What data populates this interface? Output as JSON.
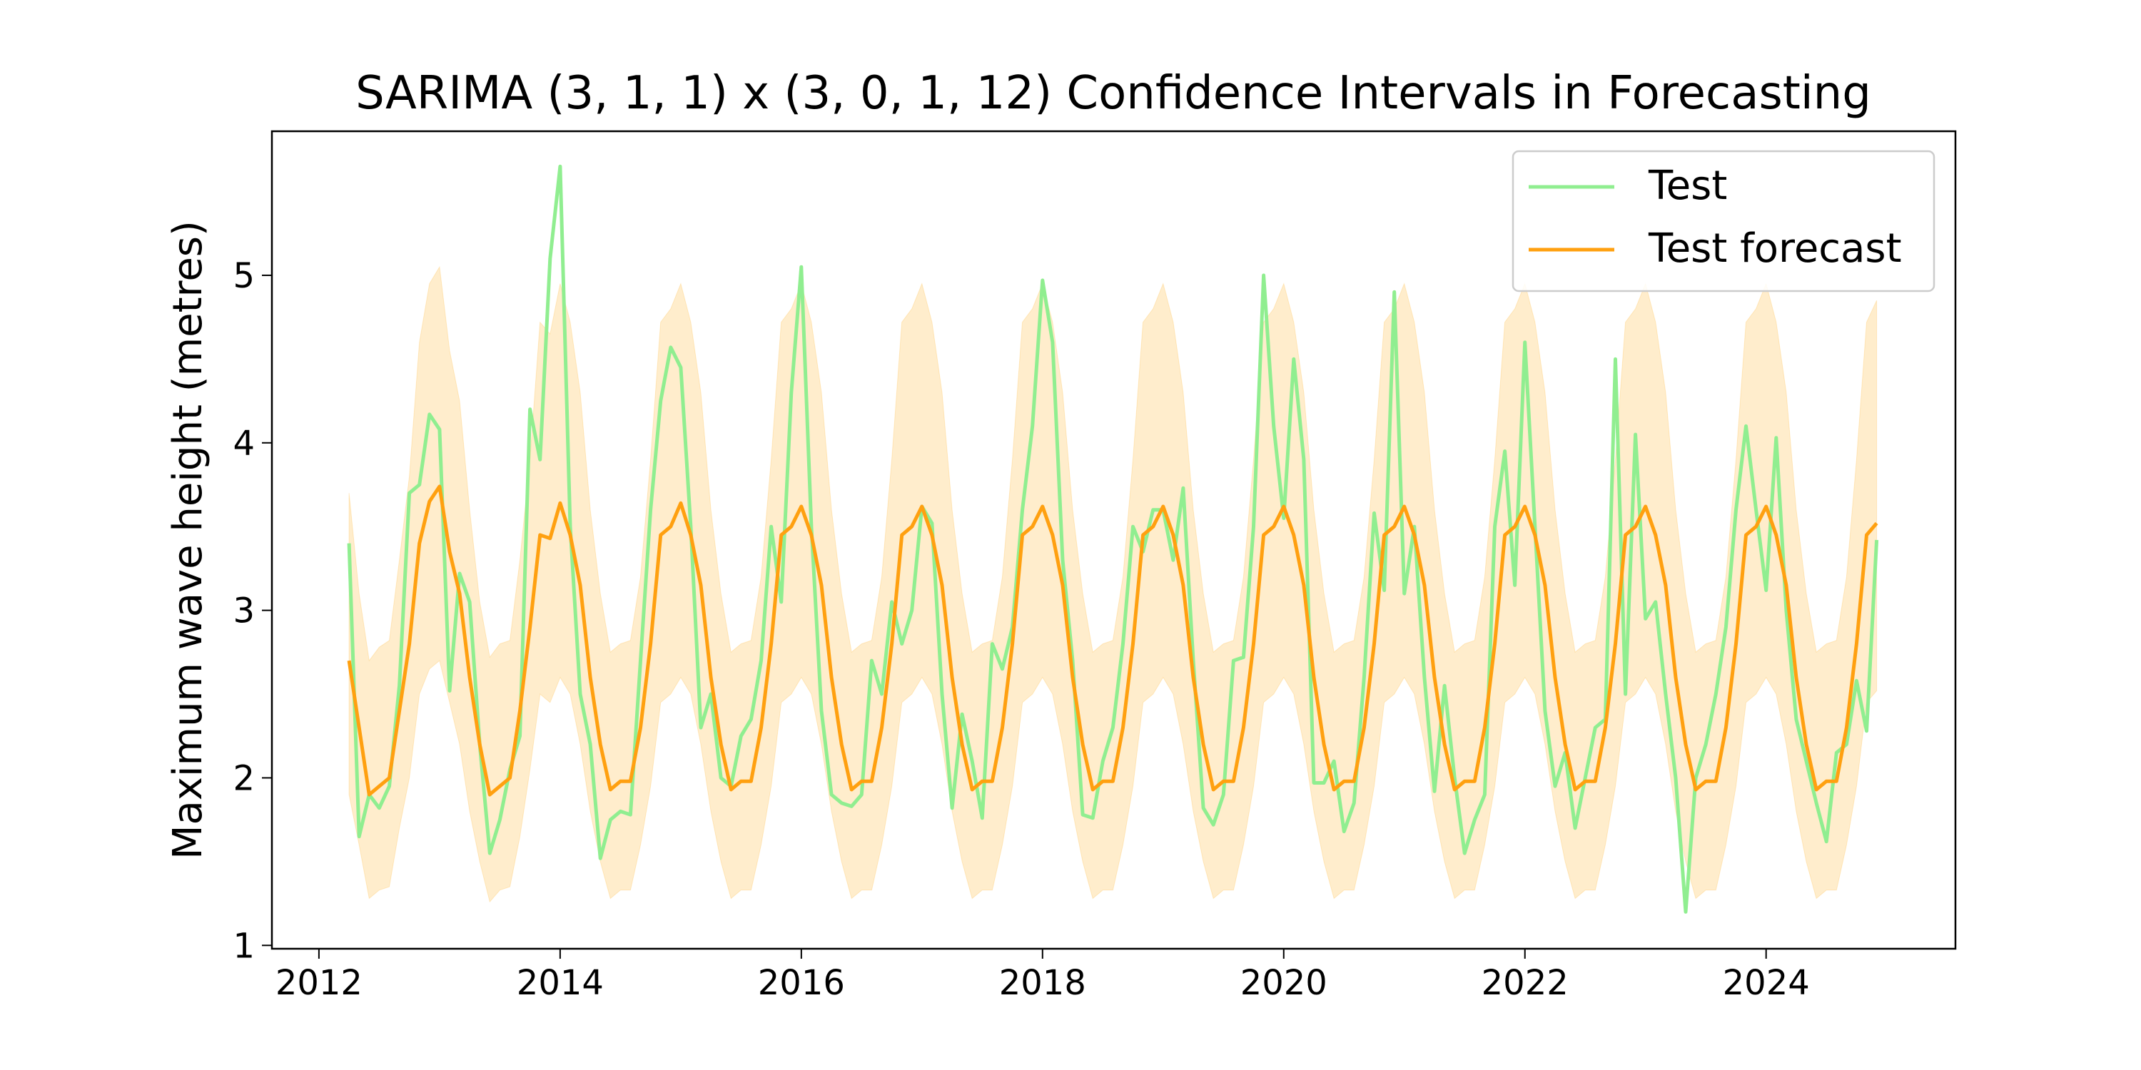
{
  "chart_data": {
    "type": "line",
    "title": "SARIMA (3, 1, 1) x (3, 0, 1, 12) Confidence Intervals in Forecasting",
    "y_label": "Maximum wave height (metres)",
    "x": [
      "2012-04",
      "2012-05",
      "2012-06",
      "2012-07",
      "2012-08",
      "2012-09",
      "2012-10",
      "2012-11",
      "2012-12",
      "2013-01",
      "2013-02",
      "2013-03",
      "2013-04",
      "2013-05",
      "2013-06",
      "2013-07",
      "2013-08",
      "2013-09",
      "2013-10",
      "2013-11",
      "2013-12",
      "2014-01",
      "2014-02",
      "2014-03",
      "2014-04",
      "2014-05",
      "2014-06",
      "2014-07",
      "2014-08",
      "2014-09",
      "2014-10",
      "2014-11",
      "2014-12",
      "2015-01",
      "2015-02",
      "2015-03",
      "2015-04",
      "2015-05",
      "2015-06",
      "2015-07",
      "2015-08",
      "2015-09",
      "2015-10",
      "2015-11",
      "2015-12",
      "2016-01",
      "2016-02",
      "2016-03",
      "2016-04",
      "2016-05",
      "2016-06",
      "2016-07",
      "2016-08",
      "2016-09",
      "2016-10",
      "2016-11",
      "2016-12",
      "2017-01",
      "2017-02",
      "2017-03",
      "2017-04",
      "2017-05",
      "2017-06",
      "2017-07",
      "2017-08",
      "2017-09",
      "2017-10",
      "2017-11",
      "2017-12",
      "2018-01",
      "2018-02",
      "2018-03",
      "2018-04",
      "2018-05",
      "2018-06",
      "2018-07",
      "2018-08",
      "2018-09",
      "2018-10",
      "2018-11",
      "2018-12",
      "2019-01",
      "2019-02",
      "2019-03",
      "2019-04",
      "2019-05",
      "2019-06",
      "2019-07",
      "2019-08",
      "2019-09",
      "2019-10",
      "2019-11",
      "2019-12",
      "2020-01",
      "2020-02",
      "2020-03",
      "2020-04",
      "2020-05",
      "2020-06",
      "2020-07",
      "2020-08",
      "2020-09",
      "2020-10",
      "2020-11",
      "2020-12",
      "2021-01",
      "2021-02",
      "2021-03",
      "2021-04",
      "2021-05",
      "2021-06",
      "2021-07",
      "2021-08",
      "2021-09",
      "2021-10",
      "2021-11",
      "2021-12",
      "2022-01",
      "2022-02",
      "2022-03",
      "2022-04",
      "2022-05",
      "2022-06",
      "2022-07",
      "2022-08",
      "2022-09",
      "2022-10",
      "2022-11",
      "2022-12",
      "2023-01",
      "2023-02",
      "2023-03",
      "2023-04",
      "2023-05",
      "2023-06",
      "2023-07",
      "2023-08",
      "2023-09",
      "2023-10",
      "2023-11",
      "2023-12",
      "2024-01",
      "2024-02",
      "2024-03",
      "2024-04",
      "2024-05",
      "2024-06",
      "2024-07",
      "2024-08",
      "2024-09",
      "2024-10",
      "2024-11",
      "2024-12"
    ],
    "series": [
      {
        "name": "Test",
        "color": "#90ee90",
        "values": [
          3.4,
          1.65,
          1.9,
          1.82,
          1.95,
          2.55,
          3.7,
          3.75,
          4.17,
          4.08,
          2.52,
          3.22,
          3.05,
          2.2,
          1.55,
          1.75,
          2.05,
          2.25,
          4.2,
          3.9,
          5.1,
          5.65,
          3.5,
          2.5,
          2.2,
          1.52,
          1.75,
          1.8,
          1.78,
          2.7,
          3.6,
          4.25,
          4.57,
          4.45,
          3.5,
          2.3,
          2.5,
          2.0,
          1.95,
          2.25,
          2.35,
          2.7,
          3.5,
          3.05,
          4.3,
          5.05,
          3.5,
          2.4,
          1.9,
          1.85,
          1.83,
          1.9,
          2.7,
          2.5,
          3.05,
          2.8,
          3.0,
          3.62,
          3.52,
          2.5,
          1.82,
          2.38,
          2.1,
          1.76,
          2.8,
          2.65,
          2.9,
          3.6,
          4.1,
          4.97,
          4.6,
          3.3,
          2.7,
          1.78,
          1.76,
          2.1,
          2.3,
          2.8,
          3.5,
          3.35,
          3.6,
          3.6,
          3.3,
          3.73,
          2.7,
          1.82,
          1.72,
          1.9,
          2.7,
          2.72,
          3.5,
          5.0,
          4.1,
          3.55,
          4.5,
          3.9,
          1.97,
          1.97,
          2.1,
          1.68,
          1.85,
          2.6,
          3.58,
          3.12,
          4.9,
          3.1,
          3.5,
          2.6,
          1.92,
          2.55,
          2.0,
          1.55,
          1.75,
          1.9,
          3.5,
          3.95,
          3.15,
          4.6,
          3.5,
          2.4,
          1.95,
          2.15,
          1.7,
          2.0,
          2.3,
          2.35,
          4.5,
          2.5,
          4.05,
          2.95,
          3.05,
          2.5,
          2.0,
          1.2,
          2.0,
          2.2,
          2.5,
          2.9,
          3.6,
          4.1,
          3.6,
          3.12,
          4.03,
          3.0,
          2.35,
          2.1,
          1.85,
          1.62,
          2.15,
          2.2,
          2.58,
          2.28,
          3.42
        ]
      },
      {
        "name": "Test forecast",
        "color": "#ffa010",
        "values": [
          2.7,
          2.3,
          1.9,
          1.95,
          2.0,
          2.4,
          2.8,
          3.4,
          3.65,
          3.74,
          3.35,
          3.1,
          2.6,
          2.2,
          1.9,
          1.95,
          2.0,
          2.4,
          2.9,
          3.45,
          3.43,
          3.64,
          3.45,
          3.15,
          2.6,
          2.2,
          1.93,
          1.98,
          1.98,
          2.3,
          2.8,
          3.45,
          3.5,
          3.64,
          3.45,
          3.15,
          2.6,
          2.2,
          1.93,
          1.98,
          1.98,
          2.3,
          2.8,
          3.45,
          3.5,
          3.62,
          3.45,
          3.15,
          2.6,
          2.2,
          1.93,
          1.98,
          1.98,
          2.3,
          2.8,
          3.45,
          3.5,
          3.62,
          3.45,
          3.15,
          2.6,
          2.2,
          1.93,
          1.98,
          1.98,
          2.3,
          2.8,
          3.45,
          3.5,
          3.62,
          3.45,
          3.15,
          2.6,
          2.2,
          1.93,
          1.98,
          1.98,
          2.3,
          2.8,
          3.45,
          3.5,
          3.62,
          3.45,
          3.15,
          2.6,
          2.2,
          1.93,
          1.98,
          1.98,
          2.3,
          2.8,
          3.45,
          3.5,
          3.62,
          3.45,
          3.15,
          2.6,
          2.2,
          1.93,
          1.98,
          1.98,
          2.3,
          2.8,
          3.45,
          3.5,
          3.62,
          3.45,
          3.15,
          2.6,
          2.2,
          1.93,
          1.98,
          1.98,
          2.3,
          2.8,
          3.45,
          3.5,
          3.62,
          3.45,
          3.15,
          2.6,
          2.2,
          1.93,
          1.98,
          1.98,
          2.3,
          2.8,
          3.45,
          3.5,
          3.62,
          3.45,
          3.15,
          2.6,
          2.2,
          1.93,
          1.98,
          1.98,
          2.3,
          2.8,
          3.45,
          3.5,
          3.62,
          3.45,
          3.15,
          2.6,
          2.2,
          1.93,
          1.98,
          1.98,
          2.3,
          2.8,
          3.45,
          3.52
        ]
      }
    ],
    "confidence_interval": {
      "color": "#ffa500",
      "upper": [
        3.7,
        3.1,
        2.7,
        2.78,
        2.82,
        3.3,
        3.8,
        4.6,
        4.95,
        5.05,
        4.55,
        4.25,
        3.6,
        3.05,
        2.72,
        2.8,
        2.82,
        3.3,
        3.9,
        4.72,
        4.65,
        4.95,
        4.72,
        4.3,
        3.6,
        3.1,
        2.75,
        2.8,
        2.82,
        3.2,
        3.9,
        4.72,
        4.8,
        4.95,
        4.72,
        4.3,
        3.6,
        3.1,
        2.75,
        2.8,
        2.82,
        3.2,
        3.9,
        4.72,
        4.8,
        4.95,
        4.72,
        4.3,
        3.6,
        3.1,
        2.75,
        2.8,
        2.82,
        3.2,
        3.9,
        4.72,
        4.8,
        4.95,
        4.72,
        4.3,
        3.6,
        3.1,
        2.75,
        2.8,
        2.82,
        3.2,
        3.9,
        4.72,
        4.8,
        4.95,
        4.72,
        4.3,
        3.6,
        3.1,
        2.75,
        2.8,
        2.82,
        3.2,
        3.9,
        4.72,
        4.8,
        4.95,
        4.72,
        4.3,
        3.6,
        3.1,
        2.75,
        2.8,
        2.82,
        3.2,
        3.9,
        4.72,
        4.8,
        4.95,
        4.72,
        4.3,
        3.6,
        3.1,
        2.75,
        2.8,
        2.82,
        3.2,
        3.9,
        4.72,
        4.8,
        4.95,
        4.72,
        4.3,
        3.6,
        3.1,
        2.75,
        2.8,
        2.82,
        3.2,
        3.9,
        4.72,
        4.8,
        4.95,
        4.72,
        4.3,
        3.6,
        3.1,
        2.75,
        2.8,
        2.82,
        3.2,
        3.9,
        4.72,
        4.8,
        4.95,
        4.72,
        4.3,
        3.6,
        3.1,
        2.75,
        2.8,
        2.82,
        3.2,
        3.9,
        4.72,
        4.8,
        4.95,
        4.72,
        4.3,
        3.6,
        3.1,
        2.75,
        2.8,
        2.82,
        3.2,
        3.9,
        4.72,
        4.85
      ],
      "lower": [
        1.9,
        1.6,
        1.28,
        1.33,
        1.35,
        1.7,
        2.0,
        2.5,
        2.65,
        2.7,
        2.45,
        2.2,
        1.8,
        1.5,
        1.26,
        1.33,
        1.35,
        1.65,
        2.05,
        2.5,
        2.45,
        2.6,
        2.5,
        2.2,
        1.8,
        1.5,
        1.28,
        1.33,
        1.33,
        1.6,
        1.95,
        2.45,
        2.5,
        2.6,
        2.5,
        2.2,
        1.8,
        1.5,
        1.28,
        1.33,
        1.33,
        1.6,
        1.95,
        2.45,
        2.5,
        2.6,
        2.5,
        2.2,
        1.8,
        1.5,
        1.28,
        1.33,
        1.33,
        1.6,
        1.95,
        2.45,
        2.5,
        2.6,
        2.5,
        2.2,
        1.8,
        1.5,
        1.28,
        1.33,
        1.33,
        1.6,
        1.95,
        2.45,
        2.5,
        2.6,
        2.5,
        2.2,
        1.8,
        1.5,
        1.28,
        1.33,
        1.33,
        1.6,
        1.95,
        2.45,
        2.5,
        2.6,
        2.5,
        2.2,
        1.8,
        1.5,
        1.28,
        1.33,
        1.33,
        1.6,
        1.95,
        2.45,
        2.5,
        2.6,
        2.5,
        2.2,
        1.8,
        1.5,
        1.28,
        1.33,
        1.33,
        1.6,
        1.95,
        2.45,
        2.5,
        2.6,
        2.5,
        2.2,
        1.8,
        1.5,
        1.28,
        1.33,
        1.33,
        1.6,
        1.95,
        2.45,
        2.5,
        2.6,
        2.5,
        2.2,
        1.8,
        1.5,
        1.28,
        1.33,
        1.33,
        1.6,
        1.95,
        2.45,
        2.5,
        2.6,
        2.5,
        2.2,
        1.8,
        1.5,
        1.28,
        1.33,
        1.33,
        1.6,
        1.95,
        2.45,
        2.5,
        2.6,
        2.5,
        2.2,
        1.8,
        1.5,
        1.28,
        1.33,
        1.33,
        1.6,
        1.95,
        2.45,
        2.52
      ]
    },
    "xlim": [
      2011.61,
      2025.57
    ],
    "xticks": [
      2012,
      2014,
      2016,
      2018,
      2020,
      2022,
      2024
    ],
    "ylim": [
      0.98,
      5.86
    ],
    "yticks": [
      1,
      2,
      3,
      4,
      5
    ],
    "grid": false,
    "legend": "upper right"
  }
}
